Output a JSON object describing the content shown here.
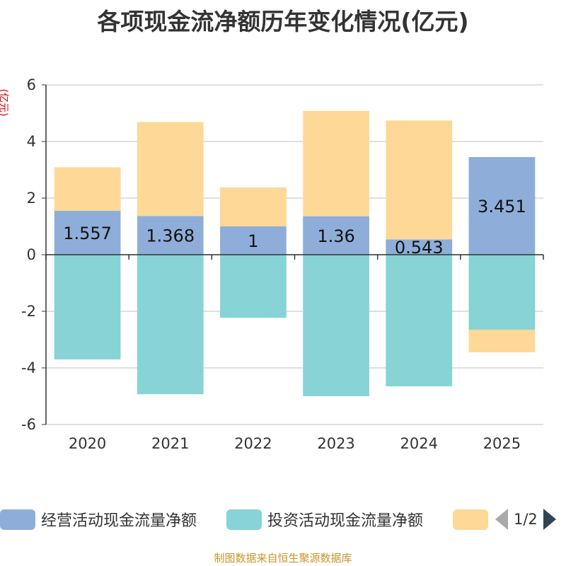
{
  "title": "各项现金流净额历年变化情况(亿元)",
  "unit_label": "(亿元)",
  "footer": "制图数据来自恒生聚源数据库",
  "legend": {
    "items": [
      {
        "label": "经营活动现金流量净额",
        "color": "#8eaed9"
      },
      {
        "label": "投资活动现金流量净额",
        "color": "#87d3d6"
      },
      {
        "label": "",
        "color": "#fed897"
      }
    ],
    "page": "1/2"
  },
  "chart_data": {
    "type": "bar",
    "stacked": true,
    "categories": [
      "2020",
      "2021",
      "2022",
      "2023",
      "2024",
      "2025"
    ],
    "ylim": [
      -6,
      6
    ],
    "yticks": [
      6,
      4,
      2,
      0,
      -2,
      -4,
      -6
    ],
    "grid": true,
    "series": [
      {
        "name": "经营活动现金流量净额",
        "color": "#8eaed9",
        "values": [
          1.557,
          1.368,
          1,
          1.36,
          0.543,
          3.451
        ],
        "labels": [
          "1.557",
          "1.368",
          "1",
          "1.36",
          "0.543",
          "3.451"
        ]
      },
      {
        "name": "投资活动现金流量净额",
        "color": "#87d3d6",
        "values": [
          -3.7,
          -4.93,
          -2.23,
          -5.0,
          -4.65,
          -2.65
        ]
      },
      {
        "color": "#fed897",
        "values": [
          1.53,
          3.32,
          1.38,
          3.72,
          4.2,
          -0.8
        ]
      }
    ]
  }
}
